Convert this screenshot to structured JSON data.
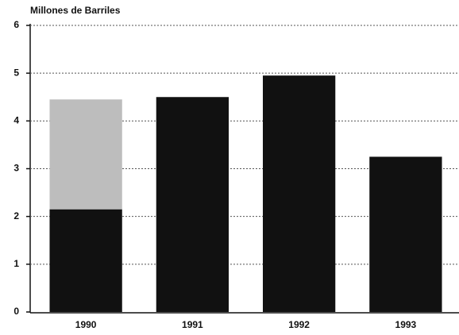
{
  "chart_data": {
    "type": "bar",
    "stacked": true,
    "title": "Millones de Barriles",
    "categories": [
      "1990",
      "1991",
      "1992",
      "1993"
    ],
    "series": [
      {
        "color": "#111111",
        "values": [
          2.15,
          4.5,
          4.95,
          3.25
        ]
      },
      {
        "color": "#bdbdbd",
        "values": [
          2.3,
          null,
          null,
          null
        ]
      }
    ],
    "ylim": [
      0,
      6
    ],
    "yticks": [
      0,
      1,
      2,
      3,
      4,
      5,
      6
    ],
    "grid": true
  }
}
